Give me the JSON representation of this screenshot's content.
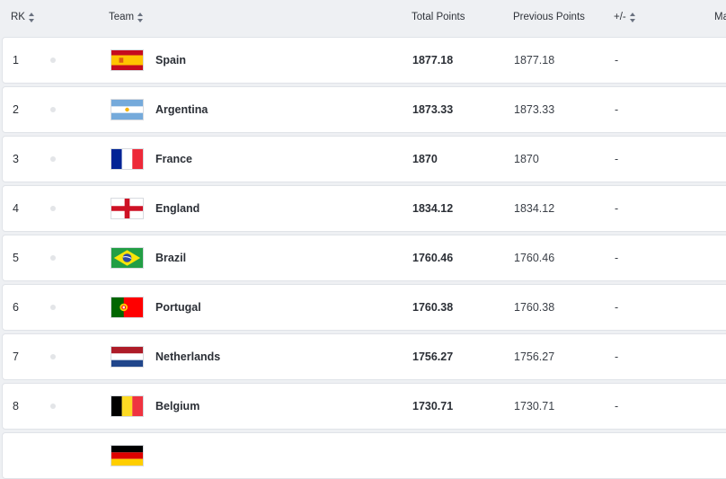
{
  "columns": {
    "rk": "RK",
    "team": "Team",
    "total": "Total Points",
    "previous": "Previous Points",
    "change": "+/-",
    "truncated": "Ma"
  },
  "rows": [
    {
      "rank": "1",
      "team": "Spain",
      "flag_icon": "spain-flag-icon",
      "total": "1877.18",
      "previous": "1877.18",
      "change": "-"
    },
    {
      "rank": "2",
      "team": "Argentina",
      "flag_icon": "argentina-flag-icon",
      "total": "1873.33",
      "previous": "1873.33",
      "change": "-"
    },
    {
      "rank": "3",
      "team": "France",
      "flag_icon": "france-flag-icon",
      "total": "1870",
      "previous": "1870",
      "change": "-"
    },
    {
      "rank": "4",
      "team": "England",
      "flag_icon": "england-flag-icon",
      "total": "1834.12",
      "previous": "1834.12",
      "change": "-"
    },
    {
      "rank": "5",
      "team": "Brazil",
      "flag_icon": "brazil-flag-icon",
      "total": "1760.46",
      "previous": "1760.46",
      "change": "-"
    },
    {
      "rank": "6",
      "team": "Portugal",
      "flag_icon": "portugal-flag-icon",
      "total": "1760.38",
      "previous": "1760.38",
      "change": "-"
    },
    {
      "rank": "7",
      "team": "Netherlands",
      "flag_icon": "netherlands-flag-icon",
      "total": "1756.27",
      "previous": "1756.27",
      "change": "-"
    },
    {
      "rank": "8",
      "team": "Belgium",
      "flag_icon": "belgium-flag-icon",
      "total": "1730.71",
      "previous": "1730.71",
      "change": "-"
    }
  ]
}
